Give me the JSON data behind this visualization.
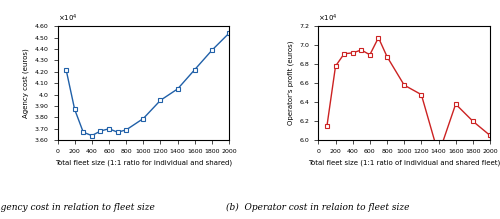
{
  "agency_x": [
    100,
    200,
    300,
    400,
    500,
    600,
    700,
    800,
    1000,
    1200,
    1400,
    1600,
    1800,
    2000
  ],
  "agency_y": [
    42200,
    38700,
    36700,
    36400,
    36800,
    37000,
    36700,
    36900,
    37900,
    39500,
    40500,
    42200,
    43900,
    45400
  ],
  "operator_x": [
    100,
    200,
    300,
    400,
    500,
    600,
    700,
    800,
    1000,
    1200,
    1400,
    1600,
    1800,
    2000
  ],
  "operator_y": [
    61500,
    67800,
    69100,
    69200,
    69500,
    69000,
    70800,
    68800,
    65800,
    64800,
    58500,
    63800,
    62000,
    60500
  ],
  "agency_xlabel": "Total fleet size (1:1 ratio for individual and shared)",
  "agency_ylabel": "Agency cost (euros)",
  "operator_xlabel": "Total fleet size (1:1 ratio of individual and shared fleet)",
  "operator_ylabel": "Operator's profit (euros)",
  "caption_a": "(a)  Agency cost in relation to fleet size",
  "caption_b": "(b)  Operator cost in relaion to fleet size",
  "agency_ylim": [
    36000,
    46000
  ],
  "agency_yticks": [
    36000,
    37000,
    38000,
    39000,
    40000,
    41000,
    42000,
    43000,
    44000,
    45000,
    46000
  ],
  "operator_ylim": [
    60000,
    72000
  ],
  "operator_yticks": [
    60000,
    62000,
    64000,
    66000,
    68000,
    70000,
    72000
  ],
  "xlim": [
    0,
    2000
  ],
  "xticks": [
    0,
    200,
    400,
    600,
    800,
    1000,
    1200,
    1400,
    1600,
    1800,
    2000
  ],
  "line_color_a": "#2060a8",
  "line_color_b": "#cc2222",
  "marker": "s",
  "markersize": 3.0,
  "linewidth": 1.0
}
